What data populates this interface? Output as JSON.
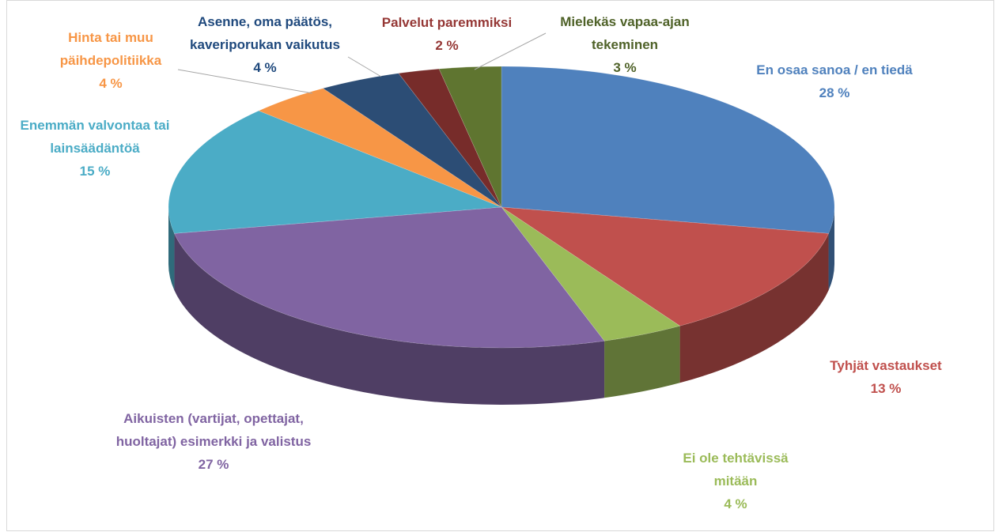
{
  "chart_data": {
    "type": "pie",
    "categories": [
      "En osaa sanoa / en tiedä",
      "Tyhjät vastaukset",
      "Ei ole tehtävissä mitään",
      "Aikuisten (vartijat, opettajat, huoltajat) esimerkki ja valistus",
      "Enemmän valvontaa tai lainsäädäntöä",
      "Hinta tai muu päihdepolitiikka",
      "Asenne, oma päätös, kaveriporukan vaikutus",
      "Palvelut paremmiksi",
      "Mielekäs vapaa-ajan tekeminen"
    ],
    "values": [
      28,
      13,
      4,
      27,
      15,
      4,
      4,
      2,
      3
    ],
    "value_labels": [
      "28 %",
      "13 %",
      "4 %",
      "27 %",
      "15 %",
      "4 %",
      "4 %",
      "2 %",
      "3 %"
    ],
    "colors": [
      "#4f81bd",
      "#c0504d",
      "#9bbb59",
      "#8064a2",
      "#4bacc6",
      "#f79646",
      "#2c4d75",
      "#772c2a",
      "#5f7530"
    ],
    "label_colors": [
      "#4f81bd",
      "#c0504d",
      "#9bbb59",
      "#8064a2",
      "#4bacc6",
      "#f79646",
      "#1f497d",
      "#953735",
      "#4f6228"
    ]
  }
}
